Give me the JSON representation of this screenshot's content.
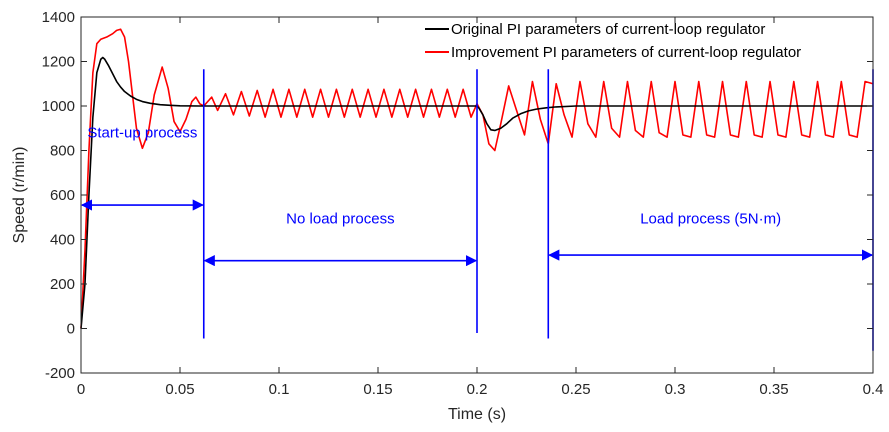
{
  "chart_data": {
    "type": "line",
    "xlabel": "Time (s)",
    "ylabel": "Speed (r/min)",
    "xlim": [
      0,
      0.4
    ],
    "ylim": [
      -200,
      1400
    ],
    "x_ticks": [
      {
        "value": 0,
        "label": "0"
      },
      {
        "value": 0.05,
        "label": "0.05"
      },
      {
        "value": 0.1,
        "label": "0.1"
      },
      {
        "value": 0.15,
        "label": "0.15"
      },
      {
        "value": 0.2,
        "label": "0.2"
      },
      {
        "value": 0.25,
        "label": "0.25"
      },
      {
        "value": 0.3,
        "label": "0.3"
      },
      {
        "value": 0.35,
        "label": "0.35"
      },
      {
        "value": 0.4,
        "label": "0.4"
      }
    ],
    "y_ticks": [
      {
        "value": -200,
        "label": "-200"
      },
      {
        "value": 0,
        "label": "0"
      },
      {
        "value": 200,
        "label": "200"
      },
      {
        "value": 400,
        "label": "400"
      },
      {
        "value": 600,
        "label": "600"
      },
      {
        "value": 800,
        "label": "800"
      },
      {
        "value": 1000,
        "label": "1000"
      },
      {
        "value": 1200,
        "label": "1200"
      },
      {
        "value": 1400,
        "label": "1400"
      }
    ],
    "grid": false,
    "legend_position": "top-right",
    "series": [
      {
        "name": "Original PI parameters  of current-loop regulator",
        "color": "#000000",
        "x": [
          0,
          0.002,
          0.004,
          0.006,
          0.008,
          0.01,
          0.011,
          0.012,
          0.014,
          0.016,
          0.018,
          0.02,
          0.022,
          0.025,
          0.028,
          0.031,
          0.035,
          0.04,
          0.045,
          0.05,
          0.06,
          0.07,
          0.1,
          0.15,
          0.2,
          0.201,
          0.203,
          0.205,
          0.207,
          0.209,
          0.212,
          0.215,
          0.218,
          0.222,
          0.226,
          0.23,
          0.235,
          0.24,
          0.25,
          0.3,
          0.35,
          0.4
        ],
        "y": [
          0,
          200,
          600,
          950,
          1150,
          1210,
          1218,
          1210,
          1180,
          1145,
          1110,
          1085,
          1065,
          1045,
          1030,
          1020,
          1012,
          1006,
          1003,
          1001,
          1000,
          1000,
          1000,
          1000,
          1000,
          990,
          960,
          920,
          893,
          890,
          900,
          920,
          945,
          965,
          978,
          986,
          992,
          996,
          1000,
          1000,
          1000,
          1000
        ]
      },
      {
        "name": "Improvement PI parameters of current-loop regulator",
        "color": "#ff0000",
        "x": [
          0,
          0.002,
          0.004,
          0.006,
          0.008,
          0.01,
          0.013,
          0.016,
          0.018,
          0.02,
          0.022,
          0.024,
          0.026,
          0.028,
          0.031,
          0.034,
          0.037,
          0.041,
          0.044,
          0.047,
          0.05,
          0.053,
          0.056,
          0.058,
          0.06,
          0.062,
          0.066,
          0.069,
          0.073,
          0.077,
          0.081,
          0.085,
          0.089,
          0.093,
          0.097,
          0.101,
          0.105,
          0.109,
          0.113,
          0.117,
          0.121,
          0.125,
          0.129,
          0.133,
          0.137,
          0.141,
          0.145,
          0.149,
          0.153,
          0.157,
          0.161,
          0.165,
          0.169,
          0.173,
          0.177,
          0.181,
          0.185,
          0.189,
          0.193,
          0.197,
          0.2,
          0.203,
          0.206,
          0.209,
          0.212,
          0.216,
          0.22,
          0.224,
          0.228,
          0.232,
          0.236,
          0.24,
          0.244,
          0.248,
          0.252,
          0.256,
          0.26,
          0.264,
          0.268,
          0.272,
          0.276,
          0.28,
          0.284,
          0.288,
          0.292,
          0.296,
          0.3,
          0.304,
          0.308,
          0.312,
          0.316,
          0.32,
          0.324,
          0.328,
          0.332,
          0.336,
          0.34,
          0.344,
          0.348,
          0.352,
          0.356,
          0.36,
          0.364,
          0.368,
          0.372,
          0.376,
          0.38,
          0.384,
          0.388,
          0.392,
          0.396,
          0.4
        ],
        "y": [
          0,
          350,
          800,
          1150,
          1280,
          1300,
          1310,
          1325,
          1340,
          1345,
          1310,
          1200,
          1050,
          900,
          810,
          880,
          1050,
          1175,
          1080,
          930,
          885,
          940,
          1020,
          1040,
          1010,
          1000,
          1040,
          980,
          1055,
          960,
          1065,
          955,
          1070,
          950,
          1075,
          950,
          1075,
          950,
          1075,
          950,
          1075,
          950,
          1075,
          950,
          1075,
          950,
          1075,
          950,
          1075,
          950,
          1075,
          950,
          1075,
          950,
          1075,
          950,
          1075,
          950,
          1075,
          950,
          1010,
          960,
          830,
          800,
          920,
          1090,
          980,
          870,
          1110,
          940,
          830,
          1100,
          960,
          860,
          1110,
          920,
          860,
          1110,
          900,
          860,
          1110,
          890,
          860,
          1110,
          880,
          860,
          1110,
          870,
          860,
          1110,
          870,
          860,
          1110,
          870,
          860,
          1110,
          870,
          860,
          1110,
          870,
          860,
          1110,
          870,
          860,
          1110,
          870,
          860,
          1110,
          870,
          860,
          1110,
          1100
        ]
      }
    ],
    "vertical_lines": [
      {
        "x": 0.062,
        "y_top": 1165,
        "y_bottom": -45
      },
      {
        "x": 0.2,
        "y_top": 1165,
        "y_bottom": -20
      },
      {
        "x": 0.236,
        "y_top": 1165,
        "y_bottom": -45
      },
      {
        "x": 0.4,
        "y_top": 1165,
        "y_bottom": -100
      }
    ],
    "annotations": [
      {
        "id": "startup",
        "text": "Start-up process",
        "text_x": 0.031,
        "text_y": 880,
        "arrow_x0": 0.0,
        "arrow_x1": 0.062,
        "arrow_y": 555
      },
      {
        "id": "noload",
        "text": "No load process",
        "text_x": 0.131,
        "text_y": 495,
        "arrow_x0": 0.062,
        "arrow_x1": 0.2,
        "arrow_y": 305
      },
      {
        "id": "load",
        "text": "Load process (5N·m)",
        "text_x": 0.318,
        "text_y": 495,
        "arrow_x0": 0.236,
        "arrow_x1": 0.4,
        "arrow_y": 330
      }
    ],
    "annotation_color": "#0000ff"
  }
}
